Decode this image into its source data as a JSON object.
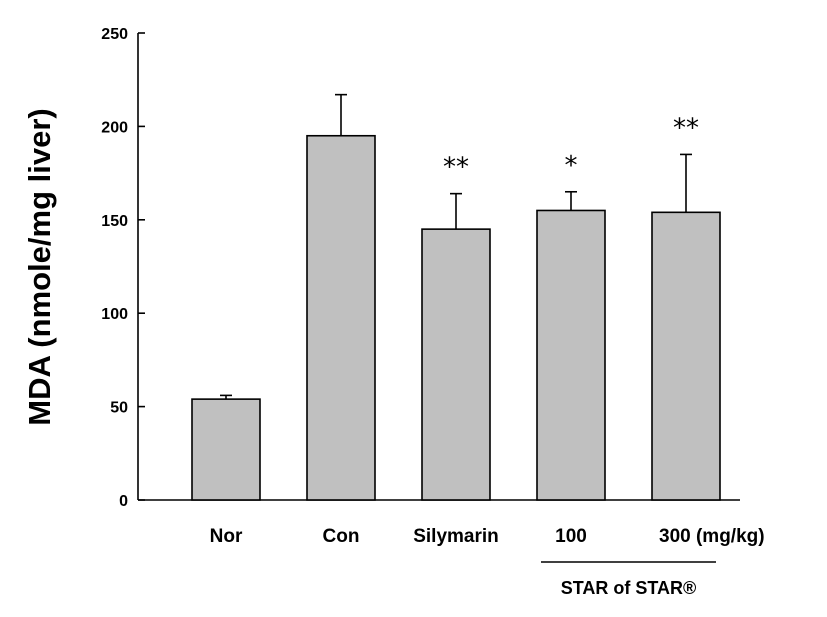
{
  "chart_data": {
    "type": "bar",
    "title": "",
    "xlabel": "",
    "ylabel": "MDA (nmole/mg liver)",
    "ylim": [
      0,
      250
    ],
    "yticks": [
      0,
      50,
      100,
      150,
      200,
      250
    ],
    "grid": false,
    "categories": [
      "Nor",
      "Con",
      "Silymarin",
      "100",
      "300 (mg/kg)"
    ],
    "values": [
      54,
      195,
      145,
      155,
      154
    ],
    "errors": [
      2,
      22,
      19,
      10,
      31
    ],
    "significance": [
      "",
      "",
      "**",
      "*",
      "**"
    ],
    "group_label": "STAR of STAR®",
    "group_categories": [
      3,
      4
    ],
    "colors": {
      "bar_fill": "#c0c0c0",
      "stroke": "#000000"
    }
  }
}
